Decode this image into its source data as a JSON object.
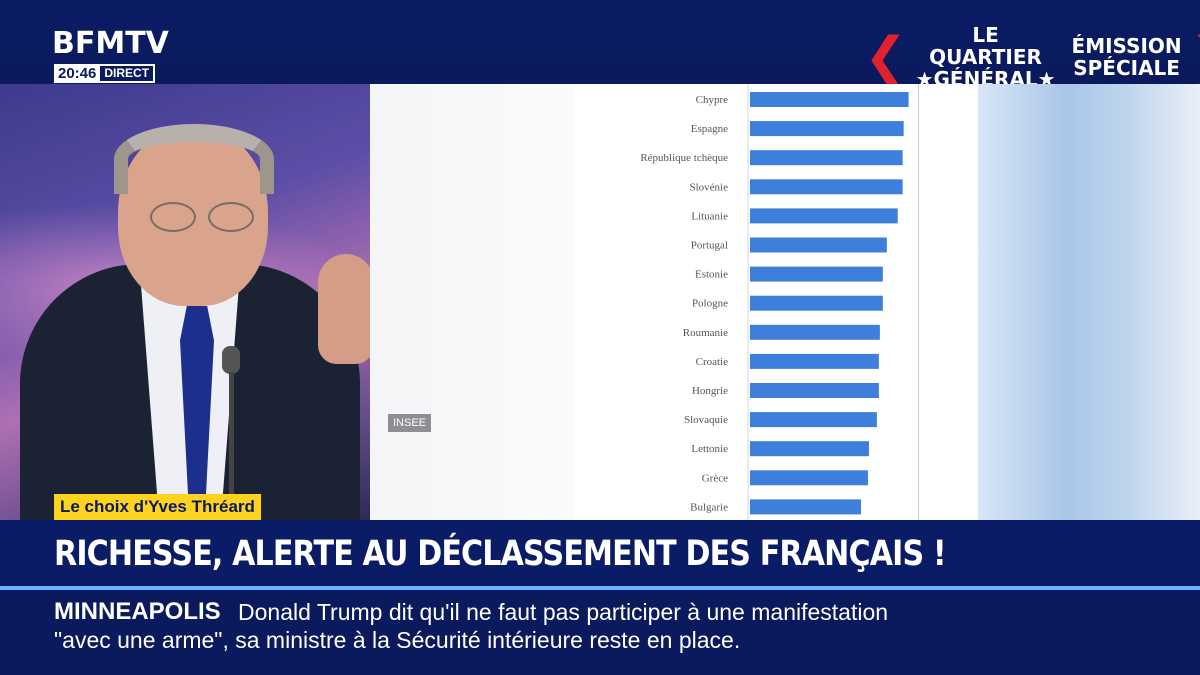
{
  "channel": {
    "logo": "BFMTV",
    "time": "20:46",
    "live": "DIRECT"
  },
  "show": {
    "left_line1": "LE QUARTIER",
    "left_line2": "★GÉNÉRAL★",
    "right_line1": "ÉMISSION",
    "right_line2": "SPÉCIALE"
  },
  "graphic": {
    "source": "INSEE"
  },
  "chart_data": {
    "type": "bar",
    "orientation": "horizontal",
    "categories": [
      "Chypre",
      "Espagne",
      "République tchèque",
      "Slovénie",
      "Lituanie",
      "Portugal",
      "Estonie",
      "Pologne",
      "Roumanie",
      "Croatie",
      "Hongrie",
      "Slovaquie",
      "Lettonie",
      "Grèce",
      "Bulgarie"
    ],
    "values": [
      16.0,
      15.5,
      15.4,
      15.4,
      14.9,
      13.8,
      13.4,
      13.4,
      13.1,
      13.0,
      13.0,
      12.8,
      12.0,
      11.9,
      11.2
    ],
    "xlim": [
      0,
      23
    ],
    "grid": "vertical",
    "color": "#3f7fdc"
  },
  "lower_third": {
    "tag": "Le choix d'Yves Thréard",
    "headline": "RICHESSE, ALERTE AU DÉCLASSEMENT DES FRANÇAIS !"
  },
  "ticker": {
    "title": "MINNEAPOLIS",
    "line1": "Donald Trump dit qu'il ne faut pas participer à une manifestation",
    "line2": "\"avec une arme\", sa ministre à la Sécurité intérieure reste en place."
  },
  "colors": {
    "navy": "#0a1a5c",
    "accent_red": "#e0222e",
    "tag_yellow": "#ffd21f",
    "separator": "#69b2ff"
  }
}
